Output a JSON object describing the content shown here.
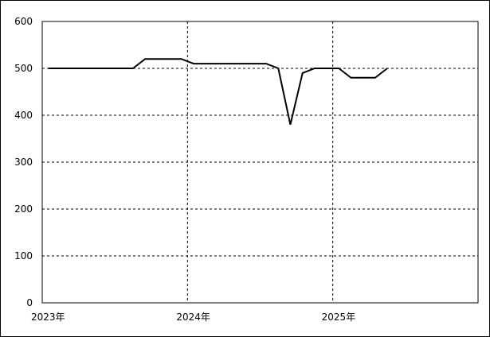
{
  "chart_data": {
    "type": "line",
    "x": [
      2023.042,
      2023.125,
      2023.208,
      2023.292,
      2023.375,
      2023.458,
      2023.542,
      2023.625,
      2023.708,
      2023.792,
      2023.875,
      2023.958,
      2024.042,
      2024.125,
      2024.208,
      2024.292,
      2024.375,
      2024.458,
      2024.542,
      2024.625,
      2024.708,
      2024.792,
      2024.875,
      2024.958,
      2025.042,
      2025.125,
      2025.208,
      2025.292,
      2025.375
    ],
    "series": [
      {
        "color": "#000000",
        "values": [
          500,
          500,
          500,
          500,
          500,
          500,
          500,
          500,
          520,
          520,
          520,
          520,
          510,
          510,
          510,
          510,
          510,
          510,
          510,
          500,
          380,
          490,
          500,
          500,
          500,
          480,
          480,
          480,
          500
        ]
      }
    ],
    "xlim": [
      2023,
      2026
    ],
    "xticks": [
      {
        "value": 2023,
        "label": "2023年"
      },
      {
        "value": 2024,
        "label": "2024年"
      },
      {
        "value": 2025,
        "label": "2025年"
      }
    ],
    "ylim": [
      0,
      600
    ],
    "yticks": [
      0,
      100,
      200,
      300,
      400,
      500,
      600
    ],
    "grid": true
  }
}
